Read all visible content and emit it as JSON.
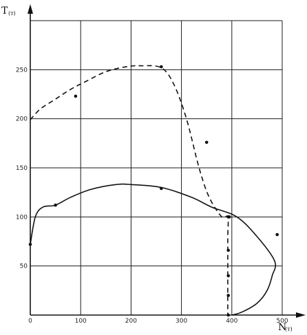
{
  "chart_data": {
    "type": "line",
    "xlabel": "N",
    "xlabel_sub": "(т)",
    "ylabel": "T",
    "ylabel_sub": "(т)",
    "xlim": [
      0,
      500
    ],
    "ylim": [
      0,
      300
    ],
    "grid": true,
    "x_ticks": [
      {
        "value": 0,
        "label": "0"
      },
      {
        "value": 100,
        "label": "100"
      },
      {
        "value": 200,
        "label": "200"
      },
      {
        "value": 300,
        "label": "300"
      },
      {
        "value": 400,
        "label": "400"
      },
      {
        "value": 500,
        "label": "500"
      }
    ],
    "y_ticks": [
      {
        "value": 50,
        "label": "50"
      },
      {
        "value": 100,
        "label": "100"
      },
      {
        "value": 150,
        "label": "150"
      },
      {
        "value": 200,
        "label": "200"
      },
      {
        "value": 250,
        "label": "250"
      }
    ],
    "series": [
      {
        "style": "dashed",
        "curve": [
          [
            0,
            199
          ],
          [
            20,
            210
          ],
          [
            50,
            220
          ],
          [
            80,
            230
          ],
          [
            110,
            238
          ],
          [
            150,
            248
          ],
          [
            190,
            253
          ],
          [
            220,
            254
          ],
          [
            260,
            252
          ],
          [
            285,
            235
          ],
          [
            310,
            200
          ],
          [
            335,
            150
          ],
          [
            355,
            120
          ],
          [
            380,
            100
          ],
          [
            392,
            100
          ],
          [
            392,
            80
          ],
          [
            392,
            60
          ],
          [
            392,
            40
          ],
          [
            392,
            20
          ],
          [
            392,
            0
          ]
        ],
        "points": [
          [
            90,
            223
          ],
          [
            260,
            253
          ],
          [
            350,
            176
          ],
          [
            393,
            100
          ],
          [
            393,
            66
          ],
          [
            393,
            40
          ],
          [
            393,
            20
          ],
          [
            393,
            0
          ]
        ]
      },
      {
        "style": "solid",
        "curve": [
          [
            0,
            72
          ],
          [
            10,
            100
          ],
          [
            25,
            110
          ],
          [
            50,
            112
          ],
          [
            80,
            120
          ],
          [
            120,
            128
          ],
          [
            170,
            133
          ],
          [
            200,
            133
          ],
          [
            260,
            130
          ],
          [
            320,
            120
          ],
          [
            360,
            110
          ],
          [
            410,
            100
          ],
          [
            450,
            80
          ],
          [
            485,
            55
          ],
          [
            480,
            40
          ],
          [
            470,
            25
          ],
          [
            450,
            12
          ],
          [
            420,
            3
          ],
          [
            400,
            0
          ]
        ],
        "points": [
          [
            0,
            72
          ],
          [
            50,
            112
          ],
          [
            260,
            129
          ],
          [
            490,
            82
          ],
          [
            395,
            100
          ]
        ]
      }
    ]
  }
}
